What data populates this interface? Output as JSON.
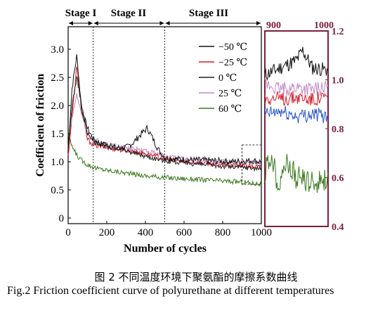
{
  "caption": {
    "cn": "图 2    不同温度环境下聚氨酯的摩擦系数曲线",
    "en": "Fig.2 Friction coefficient curve of polyurethane at different temperatures"
  },
  "chart_data": [
    {
      "type": "line",
      "xlabel": "Number of cycles",
      "ylabel": "Coefficient of friction",
      "xlim": [
        0,
        1000
      ],
      "ylim": [
        -0.1,
        3.4
      ],
      "xticks": [
        0,
        200,
        400,
        600,
        800,
        1000
      ],
      "yticks": [
        0,
        0.5,
        1.0,
        1.5,
        2.0,
        2.5,
        3.0
      ],
      "xtick_labels": [
        "0",
        "200",
        "400",
        "600",
        "800",
        "1000"
      ],
      "ytick_labels": [
        "0",
        "0.5",
        "1.0",
        "1.5",
        "2.0",
        "2.5",
        "3.0"
      ],
      "stages": [
        {
          "label": "Stage I",
          "from": 0,
          "to": 130
        },
        {
          "label": "Stage II",
          "from": 130,
          "to": 500
        },
        {
          "label": "Stage III",
          "from": 500,
          "to": 1000
        }
      ],
      "legend_position": "top-right",
      "series": [
        {
          "name": "−50 ℃",
          "color": "#111111",
          "x": [
            0,
            20,
            45,
            70,
            100,
            130,
            180,
            250,
            300,
            340,
            380,
            410,
            440,
            470,
            500,
            560,
            650,
            750,
            850,
            950,
            1000
          ],
          "values": [
            1.2,
            2.3,
            2.9,
            1.9,
            1.6,
            1.4,
            1.3,
            1.25,
            1.25,
            1.35,
            1.5,
            1.6,
            1.4,
            1.2,
            1.08,
            1.05,
            1.03,
            1.02,
            1.0,
            1.02,
            1.0
          ]
        },
        {
          "name": "−25 ℃",
          "color": "#d01c2a",
          "x": [
            0,
            20,
            45,
            70,
            100,
            130,
            200,
            300,
            400,
            500,
            600,
            700,
            800,
            900,
            1000
          ],
          "values": [
            1.1,
            1.8,
            2.7,
            1.9,
            1.4,
            1.3,
            1.25,
            1.2,
            1.15,
            1.05,
            1.0,
            0.98,
            0.95,
            0.93,
            0.9
          ]
        },
        {
          "name": "0 ℃",
          "color": "#222222",
          "x": [
            0,
            20,
            45,
            70,
            100,
            130,
            200,
            300,
            400,
            500,
            600,
            700,
            800,
            900,
            1000
          ],
          "values": [
            1.2,
            2.0,
            2.5,
            2.0,
            1.5,
            1.35,
            1.3,
            1.2,
            1.1,
            1.02,
            0.98,
            0.95,
            0.92,
            0.9,
            0.88
          ]
        },
        {
          "name": "25 ℃",
          "color": "#c28ac4",
          "x": [
            0,
            20,
            45,
            70,
            100,
            130,
            200,
            300,
            400,
            500,
            600,
            700,
            800,
            900,
            1000
          ],
          "values": [
            1.3,
            1.8,
            2.2,
            1.8,
            1.5,
            1.4,
            1.3,
            1.25,
            1.2,
            1.1,
            1.05,
            1.02,
            1.0,
            1.0,
            0.98
          ]
        },
        {
          "name": "60 ℃",
          "color": "#3d7a21",
          "x": [
            0,
            30,
            60,
            100,
            150,
            200,
            300,
            400,
            500,
            600,
            700,
            800,
            900,
            1000
          ],
          "values": [
            1.45,
            1.2,
            1.05,
            0.95,
            0.88,
            0.85,
            0.8,
            0.75,
            0.72,
            0.7,
            0.68,
            0.66,
            0.64,
            0.6
          ]
        }
      ]
    },
    {
      "type": "line",
      "xlim": [
        900,
        1000
      ],
      "ylim": [
        0.4,
        1.2
      ],
      "xtick_labels": [
        "900",
        "1000"
      ],
      "yticks": [
        0.4,
        0.6,
        0.8,
        1.0,
        1.2
      ],
      "ytick_labels": [
        "0.4",
        "0.6",
        "0.8",
        "1.0",
        "1.2"
      ],
      "series": [
        {
          "color": "#111111",
          "x": [
            900,
            925,
            950,
            960,
            975,
            1000
          ],
          "values": [
            1.02,
            1.05,
            1.08,
            1.12,
            1.05,
            1.04
          ]
        },
        {
          "color": "#d01c2a",
          "x": [
            900,
            925,
            950,
            975,
            1000
          ],
          "values": [
            0.93,
            0.92,
            0.93,
            0.92,
            0.93
          ]
        },
        {
          "color": "#2b55c4",
          "x": [
            900,
            925,
            950,
            975,
            1000
          ],
          "values": [
            0.86,
            0.87,
            0.85,
            0.86,
            0.85
          ]
        },
        {
          "color": "#c28ac4",
          "x": [
            900,
            925,
            950,
            975,
            1000
          ],
          "values": [
            0.98,
            0.96,
            0.97,
            0.96,
            0.97
          ]
        },
        {
          "color": "#3d7a21",
          "x": [
            900,
            910,
            920,
            935,
            950,
            975,
            1000
          ],
          "values": [
            0.62,
            0.7,
            0.58,
            0.66,
            0.6,
            0.58,
            0.6
          ]
        }
      ]
    }
  ]
}
